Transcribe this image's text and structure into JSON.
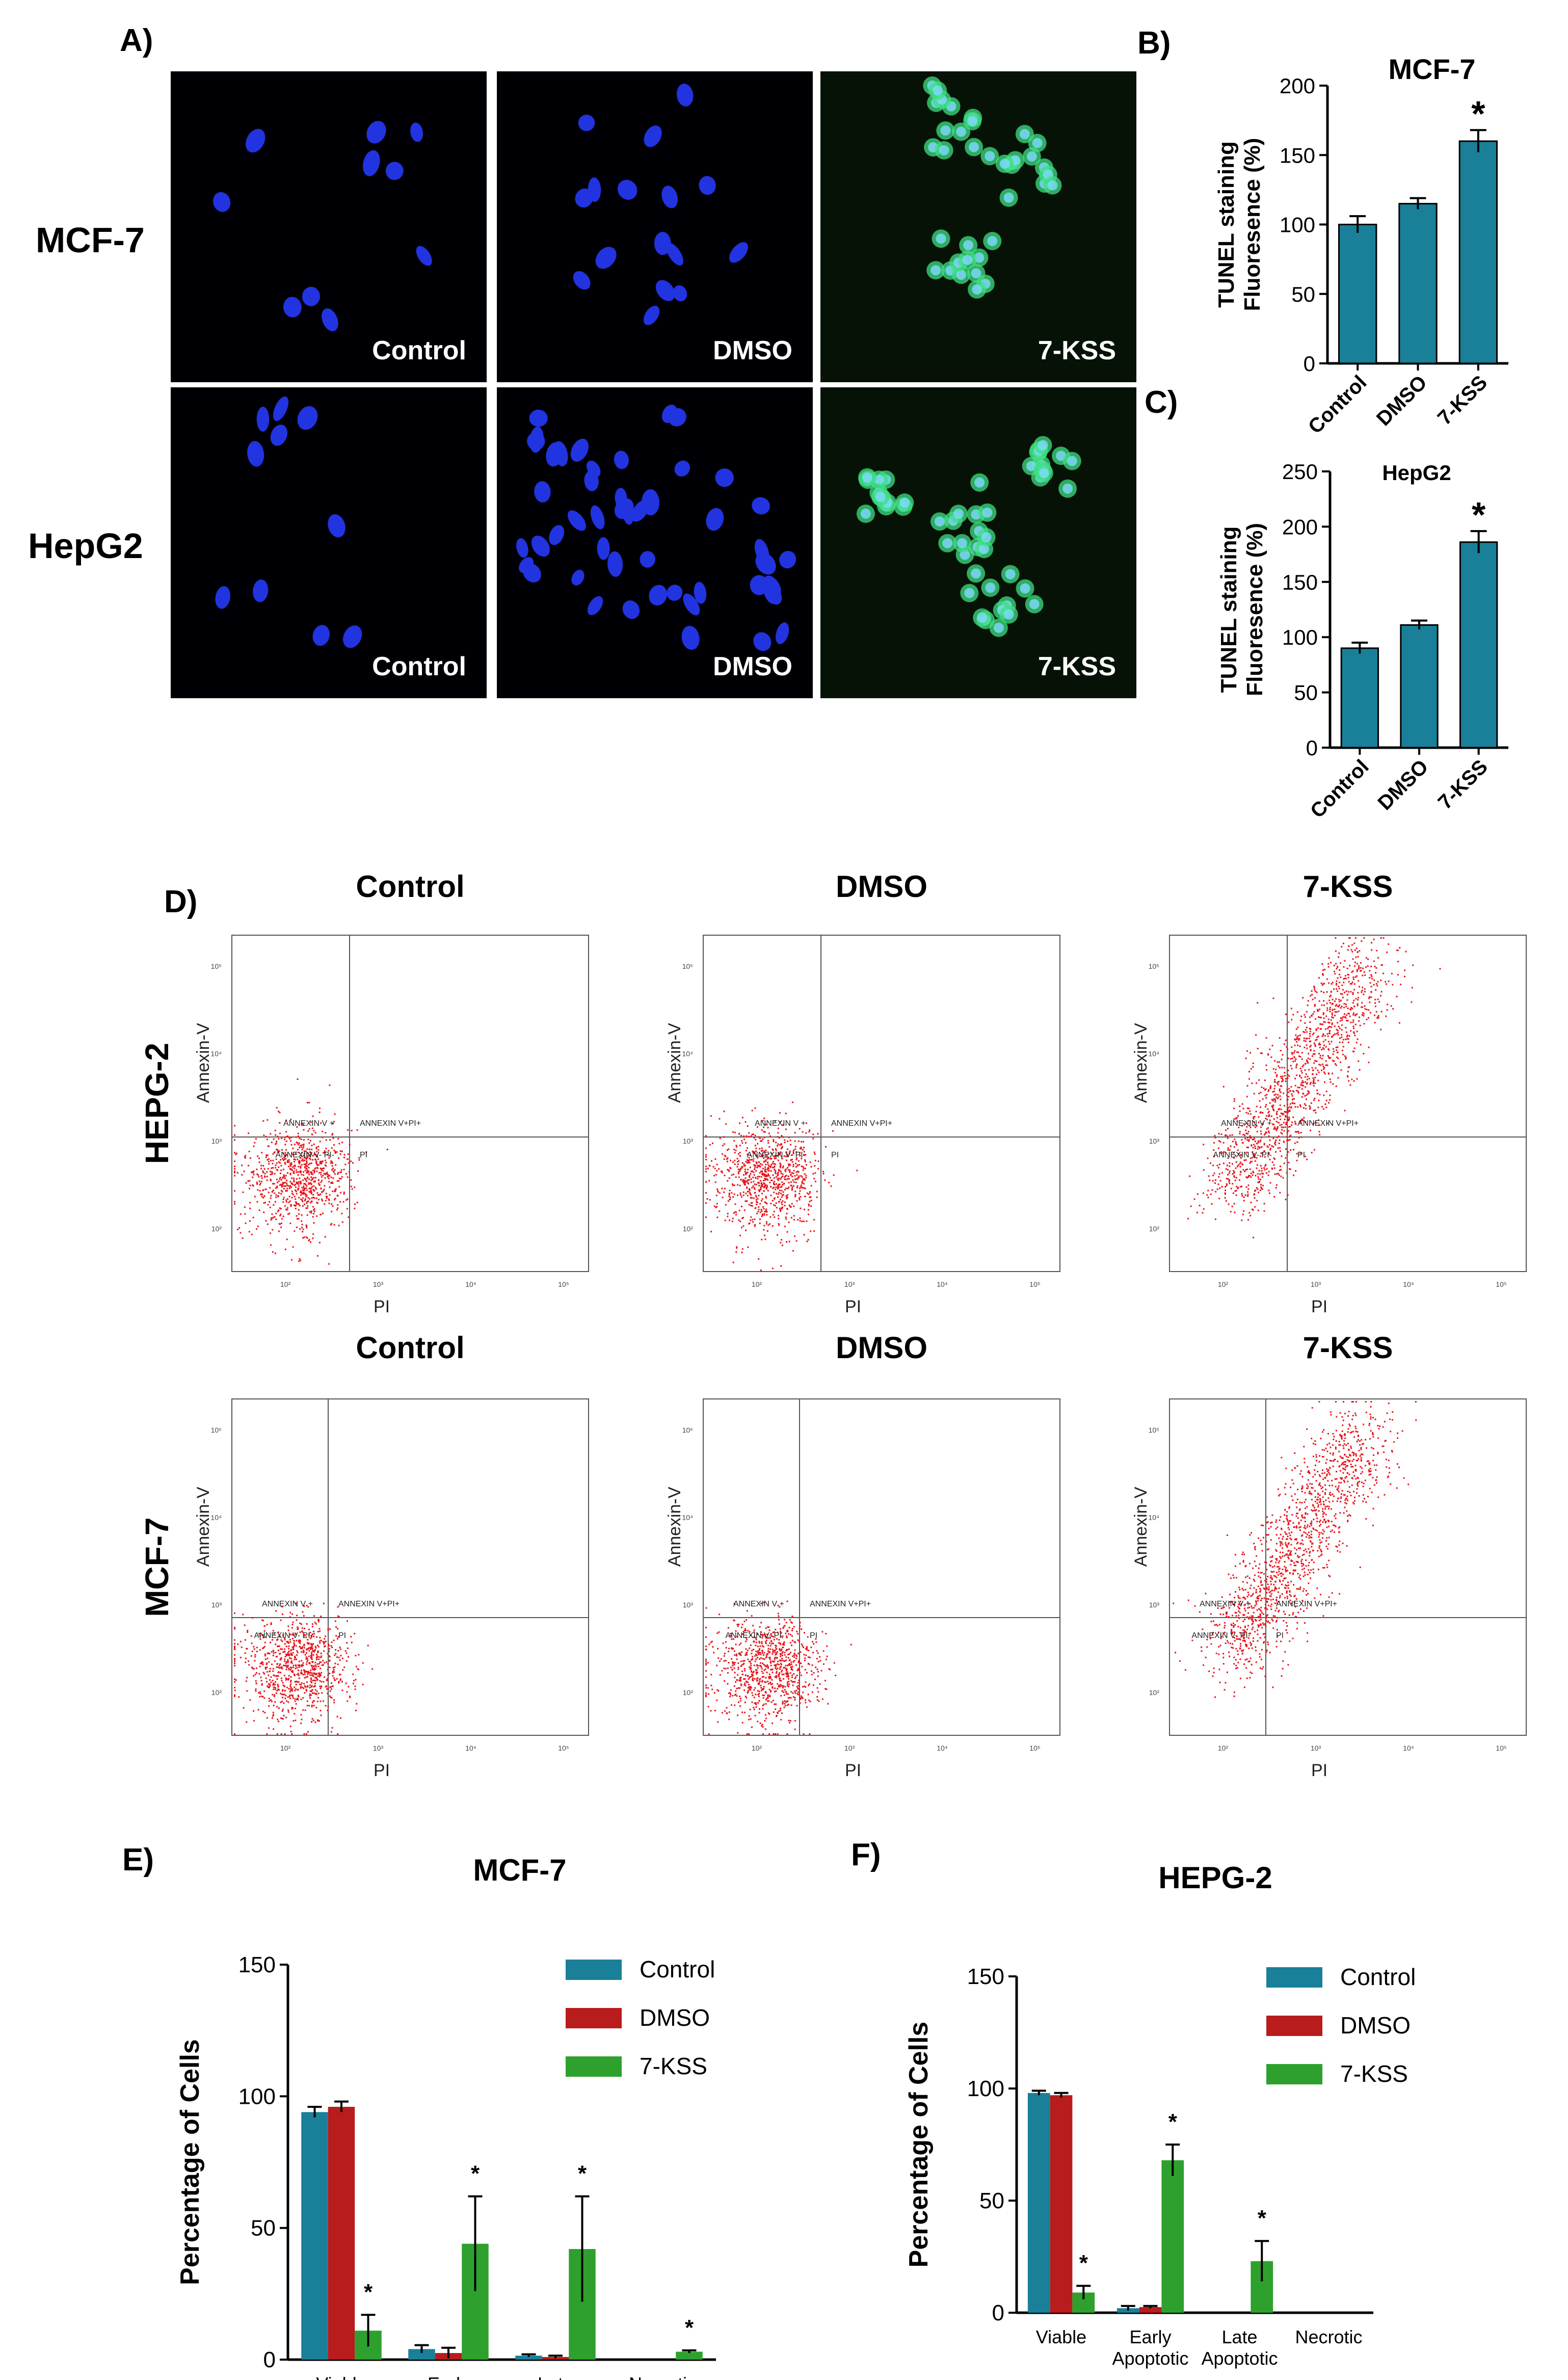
{
  "colors": {
    "control": "#1a7f99",
    "dmso": "#b81c1c",
    "kss": "#2ea02e",
    "tunel_bar": "#1a7f99",
    "dots": "#e8141b",
    "nucleus": "#2233e0",
    "tunel_green": "#3ee080"
  },
  "panels": {
    "A": "A)",
    "B": "B)",
    "C": "C)",
    "D": "D)",
    "E": "E)",
    "F": "F)"
  },
  "microscopy": {
    "row_labels": [
      "MCF-7",
      "HepG2"
    ],
    "image_labels": [
      "Control",
      "DMSO",
      "7-KSS"
    ]
  },
  "flow": {
    "treatments": [
      "Control",
      "DMSO",
      "7-KSS"
    ],
    "cell_lines": [
      "HEPG-2",
      "MCF-7"
    ],
    "x_axis_label": "PI",
    "y_axis_label": "Annexin-V",
    "quadrant_labels": {
      "ul": "ANNEXIN V +",
      "ur": "ANNEXIN V+PI+",
      "ll": "ANNEXIN V- PI-",
      "lr": "PI"
    },
    "x_ticks": [
      "10²",
      "10³",
      "10⁴",
      "10⁵"
    ],
    "y_ticks": [
      "10²",
      "10³",
      "10⁴",
      "10⁵"
    ]
  },
  "chart_data": [
    {
      "id": "B",
      "type": "bar",
      "title": "MCF-7",
      "ylabel": "TUNEL staining Fluoresence (%)",
      "xlabel": "",
      "categories": [
        "Control",
        "DMSO",
        "7-KSS"
      ],
      "values": [
        100,
        115,
        160
      ],
      "errors": [
        6,
        4,
        8
      ],
      "ylim": [
        0,
        200
      ],
      "yticks": [
        0,
        50,
        100,
        150,
        200
      ],
      "significance": [
        "",
        "",
        "*"
      ]
    },
    {
      "id": "C",
      "type": "bar",
      "title": "HepG2",
      "ylabel": "TUNEL staining Fluoresence (%)",
      "xlabel": "",
      "categories": [
        "Control",
        "DMSO",
        "7-KSS"
      ],
      "values": [
        90,
        111,
        186
      ],
      "errors": [
        5,
        4,
        10
      ],
      "ylim": [
        0,
        250
      ],
      "yticks": [
        0,
        50,
        100,
        150,
        200,
        250
      ],
      "significance": [
        "",
        "",
        "*"
      ]
    },
    {
      "id": "E",
      "type": "bar",
      "title": "MCF-7",
      "ylabel": "Percentage of Cells",
      "xlabel": "",
      "categories": [
        "Viable",
        "Early Apoptotic",
        "Late Apoptotic",
        "Necrotic"
      ],
      "ylim": [
        0,
        150
      ],
      "yticks": [
        0,
        50,
        100,
        150
      ],
      "legend": "top-right",
      "series": [
        {
          "name": "Control",
          "values": [
            94,
            4,
            1.5,
            0
          ],
          "errors": [
            2,
            1.5,
            0.5,
            0
          ]
        },
        {
          "name": "DMSO",
          "values": [
            96,
            2.5,
            1,
            0
          ],
          "errors": [
            2,
            2,
            0.5,
            0
          ]
        },
        {
          "name": "7-KSS",
          "values": [
            11,
            44,
            42,
            3
          ],
          "errors": [
            6,
            18,
            20,
            0.5
          ]
        }
      ],
      "significance": {
        "7-KSS": [
          "*",
          "*",
          "*",
          "*"
        ]
      }
    },
    {
      "id": "F",
      "type": "bar",
      "title": "HEPG-2",
      "ylabel": "Percentage of Cells",
      "xlabel": "",
      "categories": [
        "Viable",
        "Early Apoptotic",
        "Late Apoptotic",
        "Necrotic"
      ],
      "ylim": [
        0,
        150
      ],
      "yticks": [
        0,
        50,
        100,
        150
      ],
      "legend": "top-right",
      "series": [
        {
          "name": "Control",
          "values": [
            98,
            2,
            0,
            0
          ],
          "errors": [
            1,
            1,
            0,
            0
          ]
        },
        {
          "name": "DMSO",
          "values": [
            97,
            2.5,
            0,
            0
          ],
          "errors": [
            1,
            0.5,
            0,
            0
          ]
        },
        {
          "name": "7-KSS",
          "values": [
            9,
            68,
            23,
            0
          ],
          "errors": [
            3,
            7,
            9,
            0
          ]
        }
      ],
      "significance": {
        "7-KSS": [
          "*",
          "*",
          "*",
          ""
        ]
      }
    }
  ]
}
